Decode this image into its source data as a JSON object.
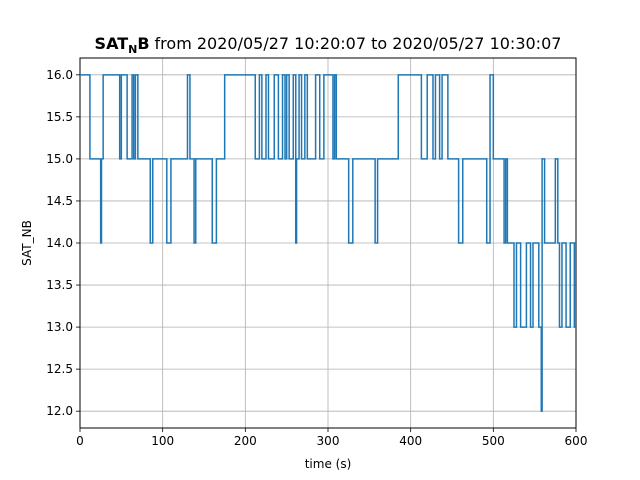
{
  "chart_data": {
    "type": "line",
    "title": {
      "bold_main": "SAT",
      "bold_subscript": "N",
      "bold_suffix": "B",
      "rest": "from 2020/05/27 10:20:07 to 2020/05/27 10:30:07"
    },
    "xlabel": "time (s)",
    "ylabel": "SAT_NB",
    "xlim": [
      0,
      600
    ],
    "ylim": [
      11.8,
      16.2
    ],
    "xticks": [
      0,
      100,
      200,
      300,
      400,
      500,
      600
    ],
    "xtick_labels": [
      "0",
      "100",
      "200",
      "300",
      "400",
      "500",
      "600"
    ],
    "yticks": [
      12.0,
      12.5,
      13.0,
      13.5,
      14.0,
      14.5,
      15.0,
      15.5,
      16.0
    ],
    "ytick_labels": [
      "12.0",
      "12.5",
      "13.0",
      "13.5",
      "14.0",
      "14.5",
      "15.0",
      "15.5",
      "16.0"
    ],
    "grid": true,
    "line_style": "step",
    "series_color": "#1f77b4",
    "series": [
      {
        "x": [
          0,
          12,
          25,
          26,
          28,
          48,
          50,
          57,
          63,
          65,
          67,
          70,
          75,
          85,
          88,
          95,
          105,
          110,
          130,
          133,
          138,
          140,
          160,
          165,
          175,
          212,
          217,
          220,
          225,
          228,
          235,
          240,
          245,
          248,
          250,
          253,
          258,
          261,
          262,
          265,
          268,
          272,
          275,
          280,
          285,
          290,
          295,
          300,
          306,
          308,
          310,
          322,
          325,
          330,
          357,
          360,
          385,
          390,
          413,
          420,
          427,
          430,
          435,
          438,
          445,
          458,
          463,
          470,
          492,
          496,
          500,
          510,
          513,
          515,
          517,
          521,
          525,
          528,
          533,
          540,
          545,
          548,
          555,
          558,
          559,
          562,
          568,
          575,
          578,
          580,
          583,
          588,
          593,
          598,
          600
        ],
        "values": [
          16,
          15,
          14,
          15,
          16,
          15,
          16,
          15,
          16,
          15,
          16,
          15,
          15,
          14,
          15,
          15,
          14,
          15,
          16,
          15,
          14,
          15,
          14,
          15,
          16,
          15,
          16,
          15,
          16,
          15,
          16,
          15,
          16,
          15,
          16,
          15,
          16,
          14,
          15,
          16,
          15,
          16,
          15,
          15,
          16,
          15,
          16,
          16,
          15,
          16,
          15,
          15,
          14,
          15,
          14,
          15,
          16,
          16,
          15,
          16,
          15,
          16,
          15,
          16,
          15,
          14,
          15,
          15,
          14,
          16,
          15,
          15,
          14,
          15,
          14,
          14,
          13,
          14,
          13,
          14,
          13,
          14,
          13,
          12,
          15,
          14,
          14,
          15,
          14,
          13,
          14,
          13,
          14,
          13,
          13
        ]
      }
    ]
  }
}
